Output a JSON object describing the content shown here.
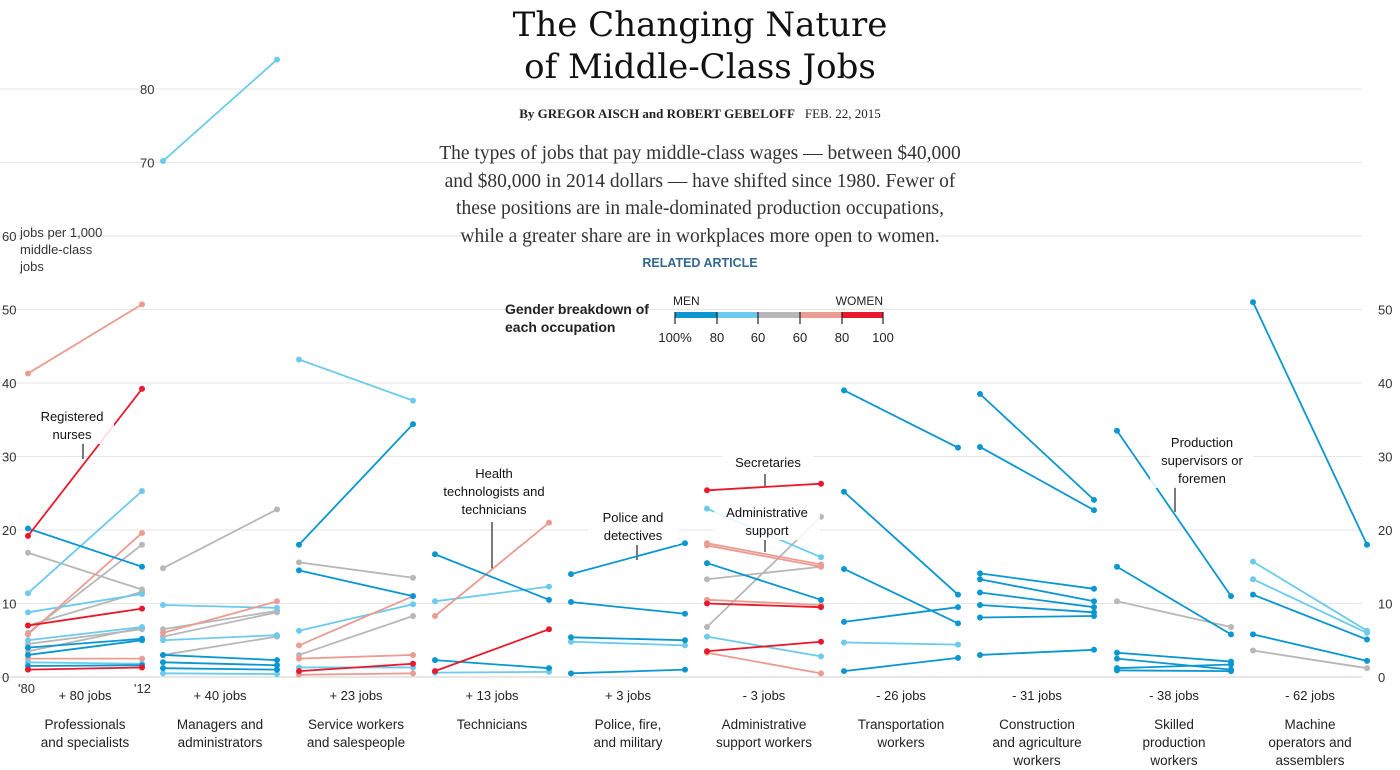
{
  "header": {
    "title_line1": "The Changing Nature",
    "title_line2": "of Middle-Class Jobs",
    "byline": "By GREGOR AISCH and ROBERT GEBELOFF",
    "date": "FEB. 22, 2015",
    "intro_lines": [
      "The types of jobs that pay middle-class wages — between $40,000",
      "and $80,000 in 2014 dollars — have shifted since 1980. Fewer of",
      "these positions are in male-dominated production occupations,",
      "while a greater share are in workplaces more open to women."
    ],
    "related": "RELATED ARTICLE"
  },
  "legend": {
    "title_line1": "Gender breakdown of",
    "title_line2": "each occupation",
    "men": "MEN",
    "women": "WOMEN",
    "ticks": [
      "100%",
      "80",
      "60",
      "60",
      "80",
      "100"
    ],
    "colors": [
      "#0a96d0",
      "#6ccbec",
      "#b7b7b7",
      "#eb9c92",
      "#e8192c"
    ]
  },
  "chart_data": {
    "type": "slope",
    "yunit_lines": [
      "jobs per 1,000",
      "middle-class",
      "jobs"
    ],
    "x_start_label": "'80",
    "x_end_label": "'12",
    "left_axis_ticks": [
      0,
      10,
      20,
      30,
      40,
      50,
      60,
      70,
      80
    ],
    "right_axis_ticks": [
      0,
      10,
      20,
      30,
      40,
      50
    ],
    "left_axis_top_label": "60",
    "colors": {
      "m": "#0a96d0",
      "ml": "#6ccbec",
      "n": "#b7b7b7",
      "wl": "#eb9c92",
      "w": "#e8192c"
    },
    "groups": [
      {
        "name": "Professionals and specialists",
        "name_lines": [
          "Professionals",
          "and specialists"
        ],
        "delta": "+ 80 jobs",
        "series": [
          {
            "v": [
              41.3,
              50.7
            ],
            "c": "wl"
          },
          {
            "v": [
              19.2,
              39.2
            ],
            "c": "w"
          },
          {
            "v": [
              20.2,
              15.0
            ],
            "c": "m"
          },
          {
            "v": [
              16.9,
              11.9
            ],
            "c": "n"
          },
          {
            "v": [
              11.4,
              25.3
            ],
            "c": "ml"
          },
          {
            "v": [
              8.8,
              11.3
            ],
            "c": "ml"
          },
          {
            "v": [
              7.0,
              9.3
            ],
            "c": "w"
          },
          {
            "v": [
              7.0,
              11.6
            ],
            "c": "n"
          },
          {
            "v": [
              6.0,
              18.0
            ],
            "c": "n"
          },
          {
            "v": [
              5.8,
              19.6
            ],
            "c": "wl"
          },
          {
            "v": [
              5.0,
              6.8
            ],
            "c": "ml"
          },
          {
            "v": [
              4.5,
              6.5
            ],
            "c": "n"
          },
          {
            "v": [
              4.0,
              5.2
            ],
            "c": "m"
          },
          {
            "v": [
              3.5,
              6.7
            ],
            "c": "n"
          },
          {
            "v": [
              3.0,
              5.0
            ],
            "c": "m"
          },
          {
            "v": [
              2.5,
              2.5
            ],
            "c": "wl"
          },
          {
            "v": [
              2.0,
              1.8
            ],
            "c": "ml"
          },
          {
            "v": [
              1.5,
              1.6
            ],
            "c": "m"
          },
          {
            "v": [
              1.0,
              1.3
            ],
            "c": "w"
          }
        ]
      },
      {
        "name": "Managers and administrators",
        "name_lines": [
          "Managers and",
          "administrators"
        ],
        "delta": "+ 40 jobs",
        "series": [
          {
            "v": [
              70.2,
              84.0
            ],
            "c": "ml"
          },
          {
            "v": [
              14.8,
              22.8
            ],
            "c": "n"
          },
          {
            "v": [
              9.8,
              9.4
            ],
            "c": "ml"
          },
          {
            "v": [
              6.5,
              9.0
            ],
            "c": "n"
          },
          {
            "v": [
              6.0,
              10.3
            ],
            "c": "wl"
          },
          {
            "v": [
              5.5,
              8.8
            ],
            "c": "n"
          },
          {
            "v": [
              5.0,
              5.7
            ],
            "c": "ml"
          },
          {
            "v": [
              3.0,
              5.5
            ],
            "c": "n"
          },
          {
            "v": [
              3.0,
              2.3
            ],
            "c": "m"
          },
          {
            "v": [
              2.0,
              1.6
            ],
            "c": "m"
          },
          {
            "v": [
              1.2,
              1.0
            ],
            "c": "m"
          },
          {
            "v": [
              0.5,
              0.4
            ],
            "c": "ml"
          }
        ]
      },
      {
        "name": "Service workers and salespeople",
        "name_lines": [
          "Service workers",
          "and salespeople"
        ],
        "delta": "+ 23 jobs",
        "series": [
          {
            "v": [
              43.2,
              37.6
            ],
            "c": "ml"
          },
          {
            "v": [
              18.0,
              34.4
            ],
            "c": "m"
          },
          {
            "v": [
              15.6,
              13.5
            ],
            "c": "n"
          },
          {
            "v": [
              14.5,
              11.0
            ],
            "c": "m"
          },
          {
            "v": [
              6.3,
              9.9
            ],
            "c": "ml"
          },
          {
            "v": [
              4.3,
              11.0
            ],
            "c": "wl"
          },
          {
            "v": [
              3.0,
              8.3
            ],
            "c": "n"
          },
          {
            "v": [
              2.5,
              3.0
            ],
            "c": "wl"
          },
          {
            "v": [
              1.3,
              1.3
            ],
            "c": "ml"
          },
          {
            "v": [
              0.8,
              1.8
            ],
            "c": "w"
          },
          {
            "v": [
              0.3,
              0.5
            ],
            "c": "wl"
          }
        ]
      },
      {
        "name": "Technicians",
        "name_lines": [
          "Technicians"
        ],
        "delta": "+ 13 jobs",
        "series": [
          {
            "v": [
              16.7,
              10.5
            ],
            "c": "m"
          },
          {
            "v": [
              10.3,
              12.3
            ],
            "c": "ml"
          },
          {
            "v": [
              8.3,
              21.0
            ],
            "c": "wl"
          },
          {
            "v": [
              2.3,
              1.2
            ],
            "c": "m"
          },
          {
            "v": [
              0.8,
              6.5
            ],
            "c": "w"
          },
          {
            "v": [
              0.6,
              0.7
            ],
            "c": "ml"
          }
        ]
      },
      {
        "name": "Police, fire, and military",
        "name_lines": [
          "Police, fire,",
          "and military"
        ],
        "delta": "+ 3 jobs",
        "series": [
          {
            "v": [
              14.0,
              18.2
            ],
            "c": "m"
          },
          {
            "v": [
              10.2,
              8.6
            ],
            "c": "m"
          },
          {
            "v": [
              5.4,
              5.0
            ],
            "c": "m"
          },
          {
            "v": [
              4.8,
              4.3
            ],
            "c": "ml"
          },
          {
            "v": [
              0.5,
              1.0
            ],
            "c": "m"
          }
        ]
      },
      {
        "name": "Administrative support workers",
        "name_lines": [
          "Administrative",
          "support workers"
        ],
        "delta": "- 3 jobs",
        "series": [
          {
            "v": [
              25.4,
              26.3
            ],
            "c": "w"
          },
          {
            "v": [
              22.9,
              16.3
            ],
            "c": "ml"
          },
          {
            "v": [
              18.2,
              15.3
            ],
            "c": "wl"
          },
          {
            "v": [
              17.9,
              15.0
            ],
            "c": "wl"
          },
          {
            "v": [
              15.5,
              10.5
            ],
            "c": "m"
          },
          {
            "v": [
              13.3,
              15.0
            ],
            "c": "n"
          },
          {
            "v": [
              10.5,
              9.8
            ],
            "c": "wl"
          },
          {
            "v": [
              10.0,
              9.5
            ],
            "c": "w"
          },
          {
            "v": [
              6.8,
              21.8
            ],
            "c": "n"
          },
          {
            "v": [
              5.5,
              2.8
            ],
            "c": "ml"
          },
          {
            "v": [
              3.5,
              4.8
            ],
            "c": "w"
          },
          {
            "v": [
              3.3,
              0.5
            ],
            "c": "wl"
          }
        ]
      },
      {
        "name": "Transportation workers",
        "name_lines": [
          "Transportation",
          "workers"
        ],
        "delta": "- 26 jobs",
        "series": [
          {
            "v": [
              39.0,
              31.2
            ],
            "c": "m"
          },
          {
            "v": [
              25.2,
              11.2
            ],
            "c": "m"
          },
          {
            "v": [
              14.7,
              7.3
            ],
            "c": "m"
          },
          {
            "v": [
              7.5,
              9.5
            ],
            "c": "m"
          },
          {
            "v": [
              4.7,
              4.4
            ],
            "c": "ml"
          },
          {
            "v": [
              0.8,
              2.6
            ],
            "c": "m"
          }
        ]
      },
      {
        "name": "Construction and agriculture workers",
        "name_lines": [
          "Construction",
          "and agriculture",
          "workers"
        ],
        "delta": "- 31 jobs",
        "series": [
          {
            "v": [
              38.5,
              24.1
            ],
            "c": "m"
          },
          {
            "v": [
              31.3,
              22.7
            ],
            "c": "m"
          },
          {
            "v": [
              14.1,
              12.0
            ],
            "c": "m"
          },
          {
            "v": [
              13.3,
              10.3
            ],
            "c": "m"
          },
          {
            "v": [
              11.5,
              9.5
            ],
            "c": "m"
          },
          {
            "v": [
              9.8,
              8.8
            ],
            "c": "m"
          },
          {
            "v": [
              8.1,
              8.3
            ],
            "c": "m"
          },
          {
            "v": [
              3.0,
              3.7
            ],
            "c": "m"
          }
        ]
      },
      {
        "name": "Skilled production workers",
        "name_lines": [
          "Skilled",
          "production",
          "workers"
        ],
        "delta": "- 38 jobs",
        "series": [
          {
            "v": [
              33.5,
              11.0
            ],
            "c": "m"
          },
          {
            "v": [
              15.0,
              5.8
            ],
            "c": "m"
          },
          {
            "v": [
              10.3,
              6.8
            ],
            "c": "n"
          },
          {
            "v": [
              3.3,
              2.1
            ],
            "c": "m"
          },
          {
            "v": [
              2.5,
              1.0
            ],
            "c": "m"
          },
          {
            "v": [
              1.2,
              1.7
            ],
            "c": "m"
          },
          {
            "v": [
              0.9,
              0.8
            ],
            "c": "m"
          }
        ]
      },
      {
        "name": "Machine operators and assemblers",
        "name_lines": [
          "Machine",
          "operators and",
          "assemblers"
        ],
        "delta": "- 62 jobs",
        "series": [
          {
            "v": [
              51.0,
              18.0
            ],
            "c": "m"
          },
          {
            "v": [
              15.7,
              6.3
            ],
            "c": "ml"
          },
          {
            "v": [
              13.3,
              6.0
            ],
            "c": "ml"
          },
          {
            "v": [
              11.2,
              5.1
            ],
            "c": "m"
          },
          {
            "v": [
              5.8,
              2.2
            ],
            "c": "m"
          },
          {
            "v": [
              3.6,
              1.2
            ],
            "c": "n"
          }
        ]
      }
    ],
    "annotations": [
      {
        "name": "annotation-registered-nurses",
        "lines": [
          "Registered",
          "nurses"
        ]
      },
      {
        "name": "annotation-health-technologists",
        "lines": [
          "Health",
          "technologists and",
          "technicians"
        ]
      },
      {
        "name": "annotation-police-detectives",
        "lines": [
          "Police and",
          "detectives"
        ]
      },
      {
        "name": "annotation-secretaries",
        "lines": [
          "Secretaries"
        ]
      },
      {
        "name": "annotation-administrative-support",
        "lines": [
          "Administrative",
          "support"
        ]
      },
      {
        "name": "annotation-production-supervisors",
        "lines": [
          "Production",
          "supervisors or",
          "foremen"
        ]
      }
    ]
  }
}
